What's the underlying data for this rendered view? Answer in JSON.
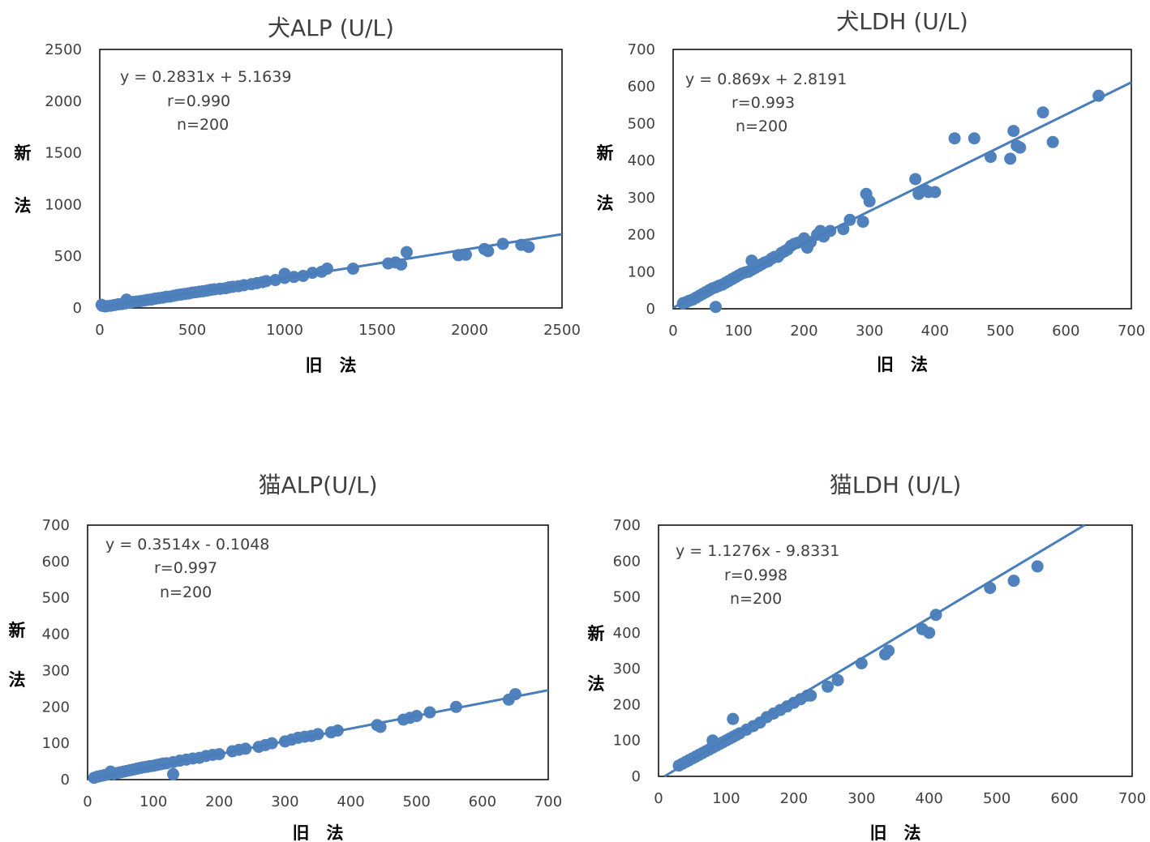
{
  "colors": {
    "marker": "#4F81BD",
    "trendline": "#4A7EBB",
    "frame": "#000000",
    "text": "#404040"
  },
  "chart_data": [
    {
      "type": "scatter",
      "title": "犬ALP (U/L)",
      "xlabel": "旧　法",
      "ylabel_chars": [
        "新",
        "法"
      ],
      "xlim": [
        0,
        2500
      ],
      "ylim": [
        0,
        2500
      ],
      "xticks": [
        "0",
        "500",
        "1000",
        "1500",
        "2000",
        "2500"
      ],
      "yticks": [
        "0",
        "500",
        "1000",
        "1500",
        "2000",
        "2500"
      ],
      "equation": "y = 0.2831x + 5.1639",
      "r_text": "r=0.990",
      "n_text": "n=200",
      "trendline": {
        "slope": 0.2831,
        "intercept": 5.1639
      },
      "points": [
        [
          10,
          30
        ],
        [
          15,
          20
        ],
        [
          30,
          15
        ],
        [
          40,
          18
        ],
        [
          60,
          22
        ],
        [
          80,
          28
        ],
        [
          100,
          35
        ],
        [
          120,
          38
        ],
        [
          140,
          45
        ],
        [
          145,
          80
        ],
        [
          160,
          50
        ],
        [
          180,
          58
        ],
        [
          200,
          62
        ],
        [
          220,
          66
        ],
        [
          240,
          72
        ],
        [
          260,
          78
        ],
        [
          280,
          82
        ],
        [
          300,
          90
        ],
        [
          320,
          95
        ],
        [
          340,
          100
        ],
        [
          360,
          108
        ],
        [
          380,
          110
        ],
        [
          400,
          118
        ],
        [
          420,
          125
        ],
        [
          440,
          130
        ],
        [
          460,
          135
        ],
        [
          480,
          140
        ],
        [
          500,
          148
        ],
        [
          520,
          152
        ],
        [
          540,
          158
        ],
        [
          560,
          162
        ],
        [
          580,
          168
        ],
        [
          600,
          175
        ],
        [
          620,
          180
        ],
        [
          650,
          185
        ],
        [
          680,
          190
        ],
        [
          700,
          200
        ],
        [
          720,
          205
        ],
        [
          750,
          210
        ],
        [
          780,
          220
        ],
        [
          820,
          230
        ],
        [
          850,
          240
        ],
        [
          880,
          250
        ],
        [
          900,
          260
        ],
        [
          950,
          270
        ],
        [
          1000,
          290
        ],
        [
          1000,
          330
        ],
        [
          1050,
          300
        ],
        [
          1100,
          310
        ],
        [
          1150,
          340
        ],
        [
          1200,
          350
        ],
        [
          1230,
          380
        ],
        [
          1370,
          380
        ],
        [
          1560,
          430
        ],
        [
          1600,
          440
        ],
        [
          1630,
          420
        ],
        [
          1660,
          540
        ],
        [
          1940,
          510
        ],
        [
          1980,
          515
        ],
        [
          2080,
          570
        ],
        [
          2100,
          550
        ],
        [
          2180,
          620
        ],
        [
          2280,
          610
        ],
        [
          2320,
          590
        ]
      ]
    },
    {
      "type": "scatter",
      "title": "犬LDH (U/L)",
      "xlabel": "旧　法",
      "ylabel_chars": [
        "新",
        "法"
      ],
      "xlim": [
        0,
        700
      ],
      "ylim": [
        0,
        700
      ],
      "xticks": [
        "0",
        "100",
        "200",
        "300",
        "400",
        "500",
        "600",
        "700"
      ],
      "yticks": [
        "0",
        "100",
        "200",
        "300",
        "400",
        "500",
        "600",
        "700"
      ],
      "equation": "y = 0.869x + 2.8191",
      "r_text": "r=0.993",
      "n_text": "n=200",
      "trendline": {
        "slope": 0.869,
        "intercept": 2.8191
      },
      "points": [
        [
          15,
          15
        ],
        [
          20,
          18
        ],
        [
          25,
          22
        ],
        [
          30,
          25
        ],
        [
          35,
          30
        ],
        [
          40,
          35
        ],
        [
          45,
          40
        ],
        [
          50,
          45
        ],
        [
          55,
          50
        ],
        [
          60,
          55
        ],
        [
          65,
          58
        ],
        [
          65,
          5
        ],
        [
          70,
          62
        ],
        [
          75,
          65
        ],
        [
          80,
          70
        ],
        [
          85,
          75
        ],
        [
          90,
          80
        ],
        [
          95,
          85
        ],
        [
          100,
          90
        ],
        [
          105,
          95
        ],
        [
          110,
          98
        ],
        [
          115,
          100
        ],
        [
          120,
          105
        ],
        [
          120,
          130
        ],
        [
          125,
          110
        ],
        [
          130,
          115
        ],
        [
          135,
          120
        ],
        [
          140,
          125
        ],
        [
          145,
          128
        ],
        [
          150,
          135
        ],
        [
          155,
          140
        ],
        [
          160,
          140
        ],
        [
          165,
          150
        ],
        [
          170,
          155
        ],
        [
          175,
          160
        ],
        [
          180,
          170
        ],
        [
          185,
          175
        ],
        [
          190,
          178
        ],
        [
          200,
          190
        ],
        [
          205,
          165
        ],
        [
          210,
          180
        ],
        [
          220,
          200
        ],
        [
          225,
          210
        ],
        [
          230,
          195
        ],
        [
          240,
          210
        ],
        [
          260,
          215
        ],
        [
          270,
          240
        ],
        [
          290,
          235
        ],
        [
          295,
          310
        ],
        [
          300,
          290
        ],
        [
          370,
          350
        ],
        [
          375,
          310
        ],
        [
          385,
          320
        ],
        [
          390,
          315
        ],
        [
          400,
          315
        ],
        [
          430,
          460
        ],
        [
          460,
          460
        ],
        [
          485,
          410
        ],
        [
          515,
          405
        ],
        [
          520,
          480
        ],
        [
          525,
          440
        ],
        [
          530,
          435
        ],
        [
          565,
          530
        ],
        [
          580,
          450
        ],
        [
          650,
          575
        ]
      ]
    },
    {
      "type": "scatter",
      "title": "猫ALP(U/L)",
      "xlabel": "旧　法",
      "ylabel_chars": [
        "新",
        "法"
      ],
      "xlim": [
        0,
        700
      ],
      "ylim": [
        0,
        700
      ],
      "xticks": [
        "0",
        "100",
        "200",
        "300",
        "400",
        "500",
        "600",
        "700"
      ],
      "yticks": [
        "0",
        "100",
        "200",
        "300",
        "400",
        "500",
        "600",
        "700"
      ],
      "equation": "y = 0.3514x - 0.1048",
      "r_text": "r=0.997",
      "n_text": "n=200",
      "trendline": {
        "slope": 0.3514,
        "intercept": -0.1048
      },
      "points": [
        [
          10,
          5
        ],
        [
          15,
          8
        ],
        [
          20,
          10
        ],
        [
          25,
          12
        ],
        [
          30,
          14
        ],
        [
          35,
          22
        ],
        [
          40,
          16
        ],
        [
          45,
          18
        ],
        [
          50,
          20
        ],
        [
          55,
          22
        ],
        [
          60,
          24
        ],
        [
          65,
          26
        ],
        [
          70,
          28
        ],
        [
          75,
          30
        ],
        [
          80,
          32
        ],
        [
          85,
          34
        ],
        [
          90,
          35
        ],
        [
          95,
          37
        ],
        [
          100,
          38
        ],
        [
          105,
          40
        ],
        [
          110,
          42
        ],
        [
          115,
          44
        ],
        [
          120,
          45
        ],
        [
          130,
          15
        ],
        [
          130,
          48
        ],
        [
          140,
          52
        ],
        [
          150,
          55
        ],
        [
          160,
          58
        ],
        [
          170,
          60
        ],
        [
          180,
          65
        ],
        [
          190,
          68
        ],
        [
          200,
          70
        ],
        [
          220,
          78
        ],
        [
          230,
          82
        ],
        [
          240,
          85
        ],
        [
          260,
          90
        ],
        [
          270,
          95
        ],
        [
          280,
          100
        ],
        [
          300,
          105
        ],
        [
          310,
          110
        ],
        [
          320,
          115
        ],
        [
          330,
          118
        ],
        [
          340,
          120
        ],
        [
          350,
          125
        ],
        [
          370,
          130
        ],
        [
          380,
          135
        ],
        [
          440,
          150
        ],
        [
          445,
          145
        ],
        [
          480,
          165
        ],
        [
          490,
          170
        ],
        [
          500,
          175
        ],
        [
          520,
          185
        ],
        [
          560,
          200
        ],
        [
          640,
          220
        ],
        [
          650,
          235
        ]
      ]
    },
    {
      "type": "scatter",
      "title": "猫LDH (U/L)",
      "xlabel": "旧　法",
      "ylabel_chars": [
        "新",
        "法"
      ],
      "xlim": [
        0,
        700
      ],
      "ylim": [
        0,
        700
      ],
      "xticks": [
        "0",
        "100",
        "200",
        "300",
        "400",
        "500",
        "600",
        "700"
      ],
      "yticks": [
        "0",
        "100",
        "200",
        "300",
        "400",
        "500",
        "600",
        "700"
      ],
      "equation": "y = 1.1276x - 9.8331",
      "r_text": "r=0.998",
      "n_text": "n=200",
      "trendline": {
        "slope": 1.1276,
        "intercept": -9.8331
      },
      "points": [
        [
          30,
          30
        ],
        [
          35,
          35
        ],
        [
          40,
          40
        ],
        [
          45,
          45
        ],
        [
          50,
          50
        ],
        [
          55,
          55
        ],
        [
          60,
          60
        ],
        [
          65,
          65
        ],
        [
          70,
          70
        ],
        [
          75,
          75
        ],
        [
          80,
          80
        ],
        [
          80,
          100
        ],
        [
          85,
          85
        ],
        [
          90,
          90
        ],
        [
          95,
          95
        ],
        [
          100,
          100
        ],
        [
          105,
          105
        ],
        [
          110,
          110
        ],
        [
          110,
          160
        ],
        [
          115,
          115
        ],
        [
          120,
          120
        ],
        [
          130,
          130
        ],
        [
          140,
          140
        ],
        [
          150,
          150
        ],
        [
          160,
          165
        ],
        [
          170,
          175
        ],
        [
          180,
          185
        ],
        [
          190,
          195
        ],
        [
          200,
          205
        ],
        [
          210,
          215
        ],
        [
          220,
          225
        ],
        [
          225,
          225
        ],
        [
          250,
          250
        ],
        [
          265,
          268
        ],
        [
          300,
          315
        ],
        [
          335,
          340
        ],
        [
          340,
          350
        ],
        [
          390,
          410
        ],
        [
          400,
          400
        ],
        [
          410,
          450
        ],
        [
          490,
          525
        ],
        [
          525,
          545
        ],
        [
          560,
          585
        ]
      ]
    }
  ]
}
